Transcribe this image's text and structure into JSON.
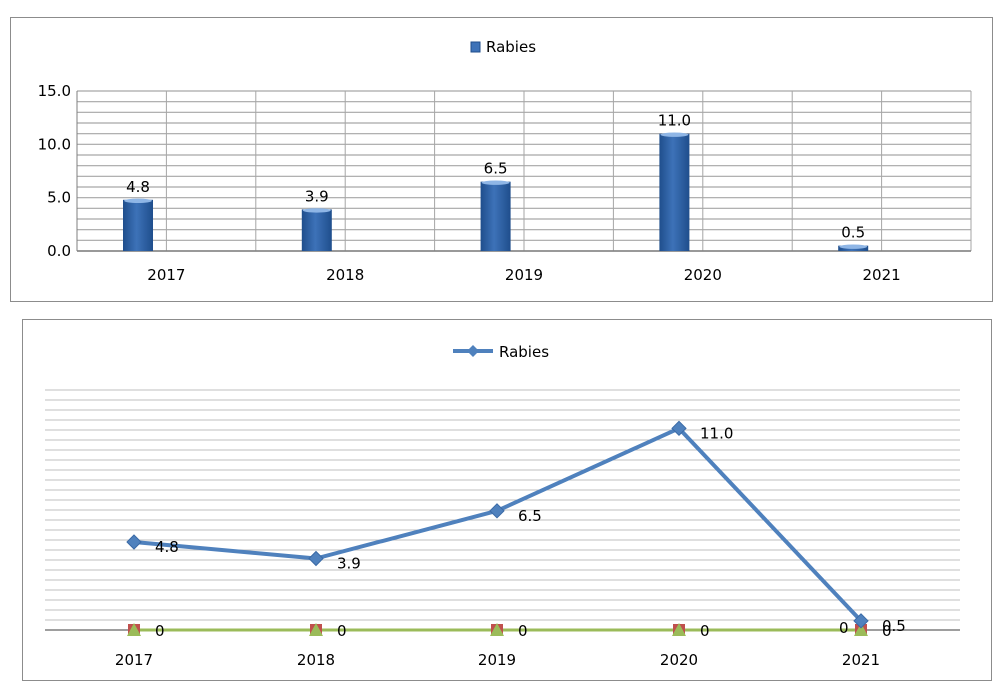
{
  "chart_data": [
    {
      "type": "bar",
      "categories": [
        "2017",
        "2018",
        "2019",
        "2020",
        "2021"
      ],
      "series": [
        {
          "name": "Rabies",
          "values": [
            4.8,
            3.9,
            6.5,
            11.0,
            0.5
          ],
          "labels": [
            "4.8",
            "3.9",
            "6.5",
            "11.0",
            "0.5"
          ]
        }
      ],
      "ylim": [
        0,
        15
      ],
      "yticks": [
        "0.0",
        "5.0",
        "10.0",
        "15.0"
      ],
      "grid": true,
      "legend_position": "top-center",
      "colors": {
        "bar": "#3d72b8",
        "bar_dark": "#1f4e8c",
        "bar_light": "#8fb6e6",
        "grid": "#a6a6a6"
      }
    },
    {
      "type": "line",
      "categories": [
        "2017",
        "2018",
        "2019",
        "2020",
        "2021"
      ],
      "series": [
        {
          "name": "Rabies",
          "values": [
            4.8,
            3.9,
            6.5,
            11.0,
            0.5
          ],
          "labels": [
            "4.8",
            "3.9",
            "6.5",
            "11.0",
            "0.5"
          ],
          "color": "#4f81bd",
          "marker": "diamond"
        },
        {
          "values": [
            0,
            0,
            0,
            0,
            0
          ],
          "labels": [
            "0",
            "0",
            "0",
            "0",
            "0"
          ],
          "color": "#c0504d",
          "marker": "square"
        },
        {
          "values": [
            0,
            0,
            0,
            0,
            0
          ],
          "labels": [
            "",
            "",
            "",
            "",
            "0"
          ],
          "color": "#9bbb59",
          "marker": "triangle"
        }
      ],
      "ylim": [
        0,
        12
      ],
      "grid": true,
      "legend_position": "top-center",
      "colors": {
        "grid": "#bfbfbf"
      }
    }
  ]
}
